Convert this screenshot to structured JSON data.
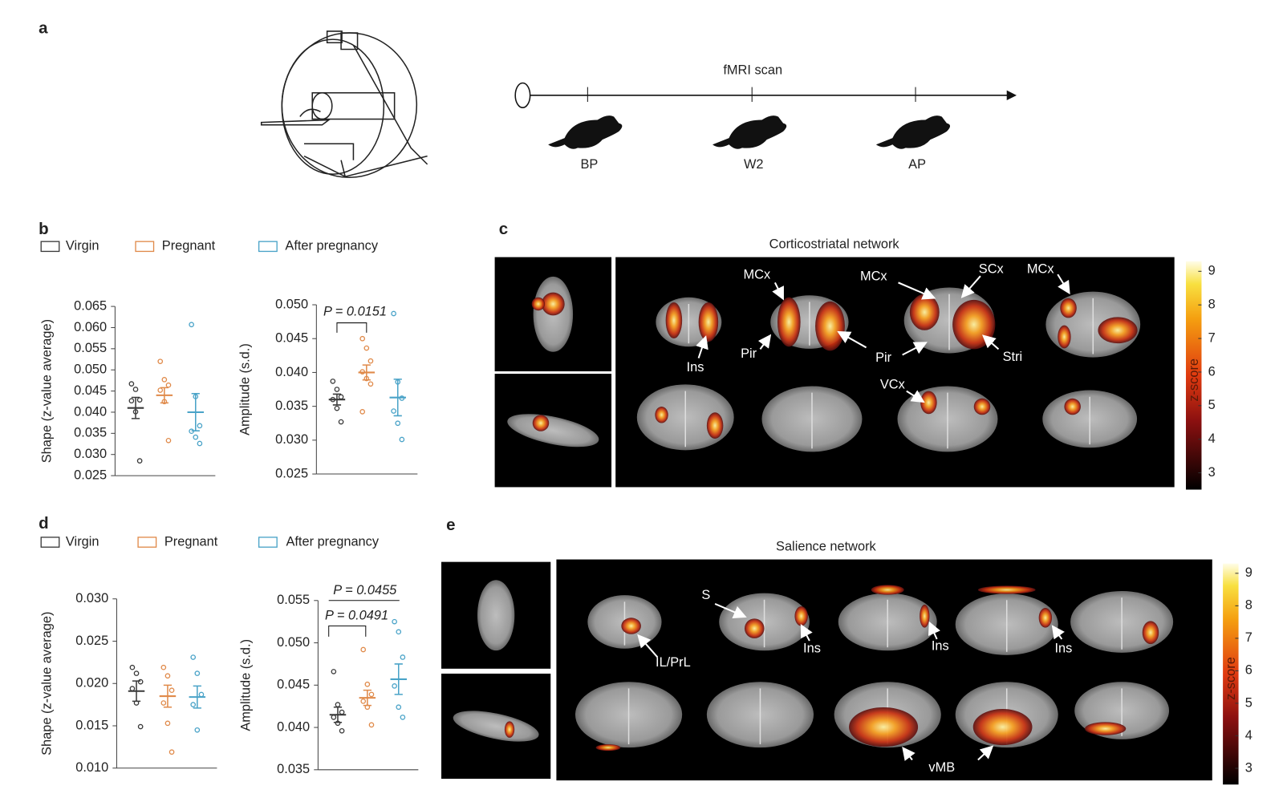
{
  "panels": [
    "a",
    "b",
    "c",
    "d",
    "e"
  ],
  "timeline": {
    "title": "fMRI scan",
    "points": [
      "BP",
      "W2",
      "AP"
    ]
  },
  "legend_b": [
    "Virgin",
    "Pregnant",
    "After pregnancy"
  ],
  "chart_data": [
    {
      "type": "dot",
      "ylabel": "Shape (z-value average)",
      "ylim": [
        0.025,
        0.065
      ],
      "yticks": [
        0.025,
        {
          "value": 0.03,
          "label": "0.030"
        },
        0.035,
        {
          "value": 0.04,
          "label": "0.040"
        },
        0.045,
        {
          "value": 0.05,
          "label": "0.050"
        },
        0.055,
        {
          "value": 0.06,
          "label": "0.060"
        },
        0.065
      ],
      "series": [
        {
          "name": "Virgin",
          "color": "#3a3a3a",
          "values": [
            0.0467,
            0.0454,
            0.0429,
            0.0427,
            0.0401,
            0.0285
          ],
          "mean": 0.041,
          "sem": 0.0025
        },
        {
          "name": "Pregnant",
          "color": "#e08a4a",
          "values": [
            0.052,
            0.0477,
            0.0464,
            0.0452,
            0.0425,
            0.0333
          ],
          "mean": 0.044,
          "sem": 0.0018
        },
        {
          "name": "After pregnancy",
          "color": "#4aa3c8",
          "values": [
            0.0607,
            0.0437,
            0.0368,
            0.0355,
            0.0341,
            0.0326
          ],
          "mean": 0.04,
          "sem": 0.0044
        }
      ]
    },
    {
      "type": "dot",
      "ylabel": "Amplitude (s.d.)",
      "ylim": [
        0.025,
        0.05
      ],
      "yticks": [
        0.025,
        {
          "value": 0.03,
          "label": "0.030"
        },
        0.035,
        {
          "value": 0.04,
          "label": "0.040"
        },
        0.045,
        {
          "value": 0.05,
          "label": "0.050"
        }
      ],
      "annotations": [
        "P = 0.0151"
      ],
      "series": [
        {
          "color": "#3a3a3a",
          "values": [
            0.0387,
            0.0375,
            0.0364,
            0.036,
            0.0347,
            0.0327
          ],
          "mean": 0.036,
          "sem": 0.0008
        },
        {
          "color": "#e08a4a",
          "values": [
            0.045,
            0.0436,
            0.0417,
            0.0401,
            0.0391,
            0.0383,
            0.0342
          ],
          "mean": 0.04,
          "sem": 0.0011
        },
        {
          "color": "#4aa3c8",
          "values": [
            0.0487,
            0.0386,
            0.0362,
            0.0343,
            0.0325,
            0.0301
          ],
          "mean": 0.0363,
          "sem": 0.0027
        }
      ]
    },
    {
      "type": "dot",
      "ylabel": "Shape (z-value average)",
      "ylim": [
        0.01,
        0.03
      ],
      "yticks": [
        {
          "value": 0.01,
          "label": "0.010"
        },
        0.015,
        {
          "value": 0.02,
          "label": "0.020"
        },
        0.025,
        {
          "value": 0.03,
          "label": "0.030"
        }
      ],
      "series": [
        {
          "name": "Virgin",
          "color": "#3a3a3a",
          "values": [
            0.0219,
            0.0212,
            0.0202,
            0.0194,
            0.0177,
            0.0149
          ],
          "mean": 0.0191,
          "sem": 0.0012
        },
        {
          "name": "Pregnant",
          "color": "#e08a4a",
          "values": [
            0.0219,
            0.0209,
            0.0192,
            0.0177,
            0.0153,
            0.0119
          ],
          "mean": 0.0185,
          "sem": 0.0013
        },
        {
          "name": "After pregnancy",
          "color": "#4aa3c8",
          "values": [
            0.0231,
            0.0212,
            0.0187,
            0.0175,
            0.0145
          ],
          "mean": 0.0184,
          "sem": 0.0013
        }
      ]
    },
    {
      "type": "dot",
      "ylabel": "Amplitude (s.d.)",
      "ylim": [
        0.035,
        0.055
      ],
      "yticks": [
        0.035,
        {
          "value": 0.04,
          "label": "0.040"
        },
        0.045,
        {
          "value": 0.05,
          "label": "0.050"
        },
        0.055
      ],
      "annotations": [
        "P = 0.0455",
        "P = 0.0491"
      ],
      "series": [
        {
          "color": "#3a3a3a",
          "values": [
            0.0466,
            0.0427,
            0.0418,
            0.0412,
            0.0405,
            0.0396
          ],
          "mean": 0.0415,
          "sem": 0.0009
        },
        {
          "color": "#e08a4a",
          "values": [
            0.0492,
            0.0451,
            0.0439,
            0.0431,
            0.0424,
            0.0403
          ],
          "mean": 0.0435,
          "sem": 0.0009
        },
        {
          "color": "#4aa3c8",
          "values": [
            0.0525,
            0.0513,
            0.0483,
            0.0449,
            0.0424,
            0.0412
          ],
          "mean": 0.0457,
          "sem": 0.0018
        }
      ]
    }
  ],
  "networks": [
    {
      "title": "Corticostriatal network",
      "labels": [
        "MCx",
        "MCx",
        "SCx",
        "MCx",
        "Ins",
        "Pir",
        "Pir",
        "Stri",
        "VCx"
      ],
      "colorbar": {
        "label": "z-score",
        "lim": [
          2.5,
          9.3
        ],
        "ticks": [
          3,
          4,
          5,
          6,
          7,
          8,
          9
        ]
      }
    },
    {
      "title": "Salience network",
      "labels": [
        "S",
        "IL/PrL",
        "Ins",
        "Ins",
        "Ins",
        "vMB"
      ],
      "colorbar": {
        "label": "z-score",
        "lim": [
          2.5,
          9.3
        ],
        "ticks": [
          3,
          4,
          5,
          6,
          7,
          8,
          9
        ]
      }
    }
  ]
}
